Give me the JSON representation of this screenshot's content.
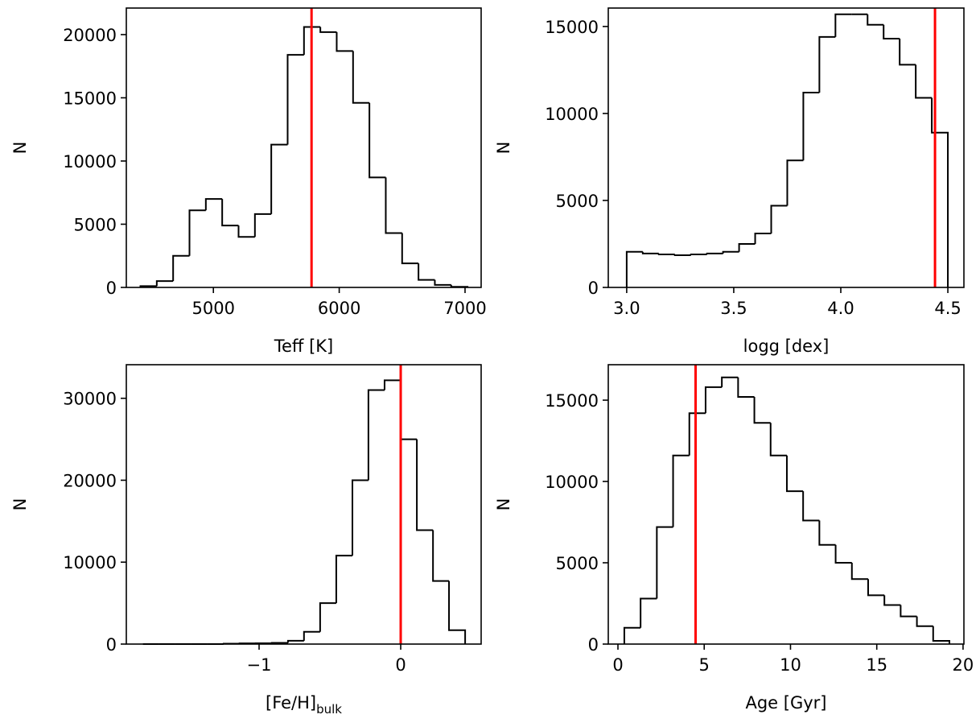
{
  "chart_data": [
    {
      "type": "histogram",
      "xlabel": "Teff [K]",
      "ylabel": "N",
      "bins": [
        4420,
        4550,
        4680,
        4810,
        4940,
        5070,
        5200,
        5330,
        5460,
        5590,
        5720,
        5850,
        5980,
        6110,
        6240,
        6370,
        6500,
        6630,
        6760,
        6890,
        7020
      ],
      "counts": [
        100,
        500,
        2500,
        6100,
        7000,
        4900,
        4000,
        5800,
        11300,
        18400,
        20600,
        20200,
        18700,
        14600,
        8700,
        4300,
        1900,
        600,
        200,
        50
      ],
      "color": "#000000",
      "vline": 5780,
      "vline_color": "#ff0000",
      "xlim": [
        4308,
        7128
      ],
      "xticks": [
        5000,
        6000,
        7000
      ],
      "ylim": [
        0,
        22100
      ],
      "yticks": [
        0,
        5000,
        10000,
        15000,
        20000
      ]
    },
    {
      "type": "histogram",
      "xlabel": "logg [dex]",
      "ylabel": "N",
      "bins": [
        3.0,
        3.075,
        3.15,
        3.225,
        3.3,
        3.375,
        3.45,
        3.525,
        3.6,
        3.675,
        3.75,
        3.825,
        3.9,
        3.975,
        4.05,
        4.125,
        4.2,
        4.275,
        4.35,
        4.425,
        4.5
      ],
      "counts": [
        2050,
        1950,
        1900,
        1850,
        1900,
        1950,
        2050,
        2500,
        3100,
        4700,
        7300,
        11200,
        14400,
        15700,
        15700,
        15100,
        14300,
        12800,
        10900,
        8900
      ],
      "color": "#000000",
      "vline": 4.44,
      "vline_color": "#ff0000",
      "xlim": [
        2.914,
        4.575
      ],
      "xticks": [
        {
          "value": 3.0,
          "label": "3.0"
        },
        3.5,
        {
          "value": 4.0,
          "label": "4.0"
        },
        4.5
      ],
      "ylim": [
        0,
        16060
      ],
      "yticks": [
        0,
        5000,
        10000,
        15000
      ]
    },
    {
      "type": "histogram",
      "xlabel": "[Fe/H]",
      "xlabel_sub": "bulk",
      "ylabel": "N",
      "bins": [
        -1.82,
        -1.706,
        -1.593,
        -1.479,
        -1.365,
        -1.251,
        -1.138,
        -1.024,
        -0.91,
        -0.796,
        -0.683,
        -0.569,
        -0.455,
        -0.341,
        -0.228,
        -0.114,
        0.0,
        0.114,
        0.228,
        0.341,
        0.455
      ],
      "counts": [
        0,
        0,
        0,
        0,
        0,
        50,
        80,
        100,
        150,
        400,
        1500,
        5000,
        10800,
        20000,
        31000,
        32200,
        25000,
        13900,
        7700,
        1700
      ],
      "color": "#000000",
      "vline": 0,
      "vline_color": "#ff0000",
      "xlim": [
        -1.9375,
        0.568
      ],
      "xticks": [
        {
          "value": -1,
          "label": "−1"
        },
        0
      ],
      "ylim": [
        0,
        34100
      ],
      "yticks": [
        0,
        10000,
        20000,
        30000
      ]
    },
    {
      "type": "histogram",
      "xlabel": "Age [Gyr]",
      "ylabel": "N",
      "bins": [
        0.37,
        1.312,
        2.254,
        3.196,
        4.138,
        5.08,
        6.022,
        6.964,
        7.906,
        8.848,
        9.79,
        10.732,
        11.674,
        12.616,
        13.558,
        14.5,
        15.442,
        16.384,
        17.326,
        18.268,
        19.21
      ],
      "counts": [
        1000,
        2800,
        7200,
        11600,
        14200,
        15800,
        16400,
        15200,
        13600,
        11600,
        9400,
        7600,
        6100,
        5000,
        4000,
        3000,
        2400,
        1700,
        1100,
        200
      ],
      "color": "#000000",
      "vline": 4.5,
      "vline_color": "#ff0000",
      "xlim": [
        -0.56,
        20.05
      ],
      "xticks": [
        0,
        5,
        10,
        15,
        20
      ],
      "ylim": [
        0,
        17180
      ],
      "yticks": [
        0,
        5000,
        10000,
        15000
      ]
    }
  ]
}
